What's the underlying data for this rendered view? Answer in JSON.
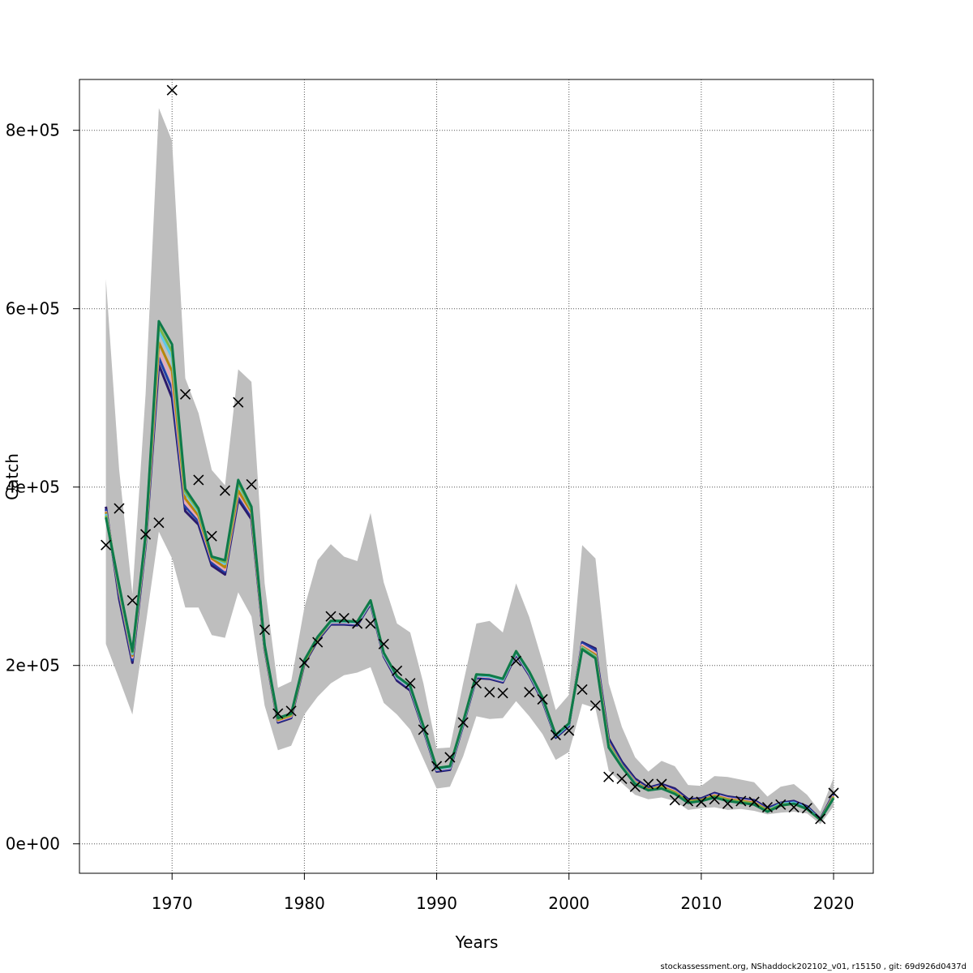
{
  "chart_data": {
    "type": "line",
    "xlabel": "Years",
    "ylabel": "Catch",
    "xlim": [
      1963,
      2023
    ],
    "ylim": [
      -33000,
      857000
    ],
    "x_ticks": [
      1970,
      1980,
      1990,
      2000,
      2010,
      2020
    ],
    "x_tick_labels": [
      "1970",
      "1980",
      "1990",
      "2000",
      "2010",
      "2020"
    ],
    "y_ticks": [
      0,
      200000,
      400000,
      600000,
      800000
    ],
    "y_tick_labels": [
      "0e+00",
      "2e+05",
      "4e+05",
      "6e+05",
      "8e+05"
    ],
    "grid": true,
    "years": [
      1965,
      1966,
      1967,
      1968,
      1969,
      1970,
      1971,
      1972,
      1973,
      1974,
      1975,
      1976,
      1977,
      1978,
      1979,
      1980,
      1981,
      1982,
      1983,
      1984,
      1985,
      1986,
      1987,
      1988,
      1989,
      1990,
      1991,
      1992,
      1993,
      1994,
      1995,
      1996,
      1997,
      1998,
      1999,
      2000,
      2001,
      2002,
      2003,
      2004,
      2005,
      2006,
      2007,
      2008,
      2009,
      2010,
      2011,
      2012,
      2013,
      2014,
      2015,
      2016,
      2017,
      2018,
      2019,
      2020
    ],
    "confidence_band": {
      "color": "#bebebe",
      "lower": [
        224000,
        185000,
        145000,
        245000,
        350000,
        320000,
        265000,
        265000,
        234000,
        231000,
        282000,
        255000,
        155000,
        105000,
        110000,
        145000,
        165000,
        180000,
        189000,
        192000,
        198000,
        158000,
        145000,
        128000,
        95000,
        62000,
        64000,
        98000,
        143000,
        140000,
        141000,
        160000,
        143000,
        123000,
        94000,
        103000,
        157000,
        152000,
        82000,
        68000,
        55000,
        50000,
        52000,
        48000,
        38000,
        40000,
        41000,
        38000,
        39000,
        37000,
        33000,
        35000,
        36000,
        34000,
        22000,
        42000
      ],
      "upper": [
        633000,
        420000,
        280000,
        505000,
        825000,
        788000,
        522000,
        483000,
        419000,
        402000,
        532000,
        518000,
        292000,
        175000,
        182000,
        265000,
        318000,
        336000,
        322000,
        317000,
        371000,
        293000,
        247000,
        237000,
        180000,
        107000,
        108000,
        180000,
        247000,
        250000,
        237000,
        292000,
        254000,
        204000,
        150000,
        167000,
        335000,
        320000,
        180000,
        131000,
        97000,
        81000,
        93000,
        87000,
        66000,
        65000,
        76000,
        75000,
        72000,
        69000,
        53000,
        64000,
        67000,
        55000,
        36000,
        74000
      ]
    },
    "series": [
      {
        "color": "#2b1a6b",
        "values": [
          378000,
          275000,
          203000,
          335000,
          537000,
          500000,
          373000,
          358000,
          312000,
          302000,
          386000,
          364000,
          218000,
          136000,
          141000,
          202000,
          228000,
          246000,
          246000,
          245000,
          269000,
          210000,
          183000,
          172000,
          128000,
          81000,
          83000,
          133000,
          186000,
          185000,
          181000,
          212000,
          189000,
          160000,
          119000,
          132000,
          226000,
          219000,
          118000,
          92000,
          73000,
          63000,
          67000,
          62000,
          50000,
          51000,
          57000,
          53000,
          51000,
          49000,
          40000,
          46000,
          48000,
          42000,
          28000,
          56000
        ]
      },
      {
        "color": "#1f3fa8",
        "values": [
          375000,
          280000,
          206000,
          338000,
          545000,
          510000,
          378000,
          362000,
          315000,
          305000,
          390000,
          368000,
          219000,
          137000,
          142000,
          203000,
          229000,
          247000,
          247000,
          246000,
          270000,
          211000,
          185000,
          174000,
          129000,
          82000,
          84000,
          134000,
          187000,
          186000,
          182000,
          213000,
          190000,
          161000,
          120000,
          133000,
          225000,
          217000,
          115000,
          90000,
          71000,
          62000,
          66000,
          60000,
          49000,
          50000,
          56000,
          52000,
          50000,
          48000,
          39000,
          45000,
          47000,
          41000,
          27000,
          55000
        ]
      },
      {
        "color": "#e8a8b8",
        "values": [
          373000,
          283000,
          209000,
          340000,
          553000,
          520000,
          382000,
          365000,
          318000,
          307000,
          393000,
          370000,
          220000,
          138000,
          143000,
          204000,
          230000,
          248000,
          248000,
          247000,
          271000,
          212000,
          186000,
          175000,
          130000,
          83000,
          85000,
          135000,
          188000,
          187000,
          183000,
          214000,
          191000,
          162000,
          121000,
          134000,
          223000,
          214000,
          113000,
          88000,
          70000,
          61000,
          65000,
          59000,
          48000,
          49000,
          55000,
          51000,
          49000,
          47000,
          38000,
          44000,
          46000,
          40000,
          27000,
          54000
        ]
      },
      {
        "color": "#b8860b",
        "values": [
          372000,
          285000,
          211000,
          342000,
          562000,
          530000,
          387000,
          368000,
          320000,
          310000,
          396000,
          372000,
          221000,
          139000,
          144000,
          204000,
          230000,
          249000,
          249000,
          248000,
          272000,
          213000,
          187000,
          176000,
          131000,
          84000,
          86000,
          136000,
          189000,
          188000,
          184000,
          215000,
          192000,
          163000,
          121000,
          134000,
          221000,
          212000,
          112000,
          88000,
          69000,
          61000,
          64000,
          58000,
          48000,
          49000,
          54000,
          50000,
          48000,
          46000,
          38000,
          43000,
          45000,
          39000,
          27000,
          53000
        ]
      },
      {
        "color": "#5cc8e8",
        "values": [
          370000,
          287000,
          213000,
          344000,
          575000,
          545000,
          393000,
          372000,
          322000,
          314000,
          403000,
          375000,
          222000,
          140000,
          145000,
          205000,
          231000,
          249000,
          249000,
          248000,
          272000,
          213000,
          187000,
          176000,
          131000,
          84000,
          86000,
          136000,
          189000,
          188000,
          184000,
          215000,
          192000,
          163000,
          121000,
          134000,
          220000,
          210000,
          110000,
          87000,
          68000,
          60000,
          63000,
          57000,
          47000,
          48000,
          53000,
          49000,
          47000,
          45000,
          37000,
          45000,
          46000,
          40000,
          27000,
          52000
        ]
      },
      {
        "color": "#7ab648",
        "values": [
          368000,
          289000,
          215000,
          346000,
          580000,
          552000,
          395000,
          374000,
          322000,
          316000,
          405000,
          376000,
          222000,
          140000,
          145000,
          205000,
          231000,
          250000,
          250000,
          249000,
          273000,
          214000,
          188000,
          177000,
          132000,
          85000,
          87000,
          137000,
          190000,
          189000,
          185000,
          216000,
          193000,
          164000,
          122000,
          135000,
          219000,
          209000,
          109000,
          86000,
          67000,
          60000,
          63000,
          57000,
          47000,
          48000,
          53000,
          49000,
          47000,
          45000,
          37000,
          44000,
          45000,
          39000,
          27000,
          52000
        ]
      },
      {
        "color": "#0e7a4a",
        "values": [
          366000,
          290000,
          216000,
          347000,
          586000,
          560000,
          398000,
          376000,
          322000,
          318000,
          408000,
          378000,
          223000,
          141000,
          146000,
          206000,
          232000,
          250000,
          250000,
          249000,
          273000,
          214000,
          188000,
          177000,
          132000,
          85000,
          87000,
          137000,
          190000,
          189000,
          185000,
          216000,
          193000,
          164000,
          122000,
          135000,
          218000,
          208000,
          108000,
          86000,
          67000,
          60000,
          62000,
          56000,
          46000,
          48000,
          52000,
          48000,
          46000,
          44000,
          36000,
          43000,
          45000,
          39000,
          27000,
          51000
        ]
      }
    ],
    "observed": {
      "marker": "x",
      "values": [
        335000,
        376000,
        273000,
        347000,
        360000,
        845000,
        504000,
        408000,
        345000,
        396000,
        495000,
        403000,
        240000,
        146000,
        149000,
        203000,
        226000,
        255000,
        253000,
        247000,
        247000,
        224000,
        194000,
        180000,
        128000,
        87000,
        97000,
        136000,
        180000,
        170000,
        169000,
        205000,
        170000,
        162000,
        122000,
        127000,
        173000,
        155000,
        75000,
        73000,
        64000,
        67000,
        67000,
        49000,
        48000,
        47000,
        50000,
        45000,
        48000,
        47000,
        41000,
        44000,
        41000,
        40000,
        28000,
        57000
      ]
    }
  },
  "footer": "stockassessment.org, NShaddock202102_v01, r15150 , git: 69d926d0437d"
}
